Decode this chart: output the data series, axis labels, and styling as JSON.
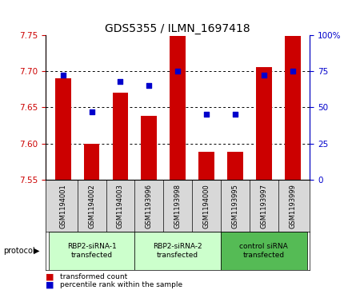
{
  "title": "GDS5355 / ILMN_1697418",
  "samples": [
    "GSM1194001",
    "GSM1194002",
    "GSM1194003",
    "GSM1193996",
    "GSM1193998",
    "GSM1194000",
    "GSM1193995",
    "GSM1193997",
    "GSM1193999"
  ],
  "bar_values": [
    7.69,
    7.6,
    7.67,
    7.638,
    7.748,
    7.589,
    7.589,
    7.705,
    7.748
  ],
  "percentile_values": [
    72,
    47,
    68,
    65,
    75,
    45,
    45,
    72,
    75
  ],
  "ylim_left": [
    7.55,
    7.75
  ],
  "ylim_right": [
    0,
    100
  ],
  "yticks_left": [
    7.55,
    7.6,
    7.65,
    7.7,
    7.75
  ],
  "yticks_right": [
    0,
    25,
    50,
    75,
    100
  ],
  "bar_color": "#cc0000",
  "dot_color": "#0000cc",
  "bar_bottom": 7.55,
  "groups": [
    {
      "label": "RBP2-siRNA-1\ntransfected",
      "start": 0,
      "end": 3,
      "color": "#ccffcc"
    },
    {
      "label": "RBP2-siRNA-2\ntransfected",
      "start": 3,
      "end": 6,
      "color": "#ccffcc"
    },
    {
      "label": "control siRNA\ntransfected",
      "start": 6,
      "end": 9,
      "color": "#55bb55"
    }
  ],
  "legend_items": [
    {
      "label": "transformed count",
      "color": "#cc0000"
    },
    {
      "label": "percentile rank within the sample",
      "color": "#0000cc"
    }
  ],
  "protocol_label": "protocol",
  "tick_color_left": "#cc0000",
  "tick_color_right": "#0000cc",
  "sample_area_color": "#d8d8d8",
  "title_fontsize": 10,
  "tick_fontsize": 7.5,
  "label_fontsize": 7
}
